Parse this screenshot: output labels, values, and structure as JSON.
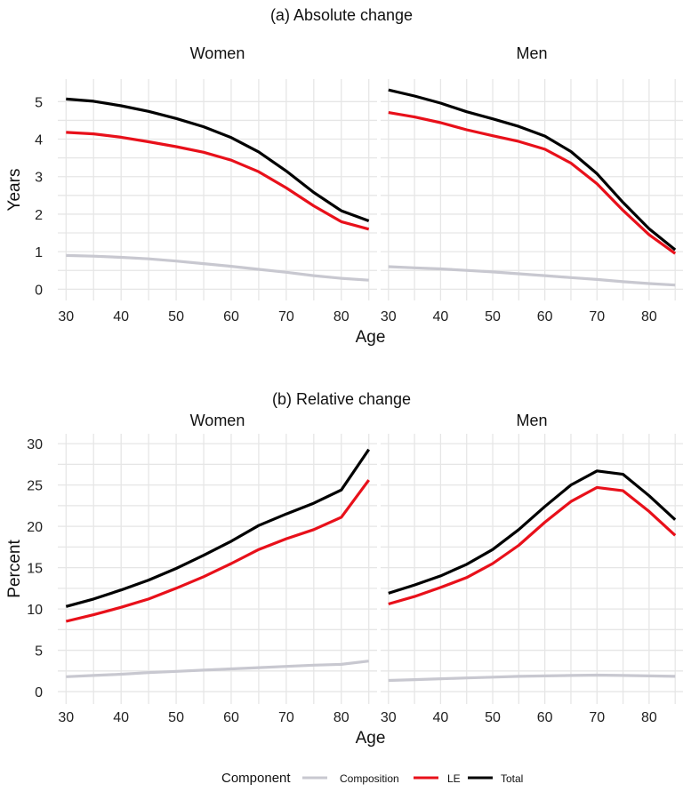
{
  "legend": {
    "title": "Component",
    "entries": [
      {
        "name": "Composition",
        "color": "#c8c8d0"
      },
      {
        "name": "LE",
        "color": "#e8101a"
      },
      {
        "name": "Total",
        "color": "#000000"
      }
    ]
  },
  "chart_data": [
    {
      "type": "line",
      "title": "(a) Absolute change",
      "xlabel": "Age",
      "ylabel": "Years",
      "facets": [
        "Women",
        "Men"
      ],
      "x": [
        30,
        35,
        40,
        45,
        50,
        55,
        60,
        65,
        70,
        75,
        80,
        85
      ],
      "xlim": [
        28.5,
        86.5
      ],
      "ylim": [
        -0.3,
        5.6
      ],
      "xticks": [
        30,
        40,
        50,
        60,
        70,
        80
      ],
      "yticks": [
        0,
        1,
        2,
        3,
        4,
        5
      ],
      "grid": true,
      "panels": [
        {
          "facet": "Women",
          "series": [
            {
              "name": "Composition",
              "values": [
                0.9,
                0.88,
                0.85,
                0.81,
                0.75,
                0.68,
                0.61,
                0.53,
                0.45,
                0.36,
                0.29,
                0.24
              ]
            },
            {
              "name": "LE",
              "values": [
                4.18,
                4.14,
                4.05,
                3.93,
                3.8,
                3.65,
                3.44,
                3.13,
                2.7,
                2.22,
                1.8,
                1.6
              ]
            },
            {
              "name": "Total",
              "values": [
                5.07,
                5.01,
                4.89,
                4.74,
                4.55,
                4.33,
                4.04,
                3.66,
                3.15,
                2.58,
                2.09,
                1.82
              ]
            }
          ]
        },
        {
          "facet": "Men",
          "series": [
            {
              "name": "Composition",
              "values": [
                0.6,
                0.57,
                0.54,
                0.5,
                0.46,
                0.41,
                0.36,
                0.31,
                0.26,
                0.2,
                0.15,
                0.11
              ]
            },
            {
              "name": "LE",
              "values": [
                4.71,
                4.59,
                4.44,
                4.25,
                4.09,
                3.94,
                3.73,
                3.36,
                2.81,
                2.1,
                1.45,
                0.95
              ]
            },
            {
              "name": "Total",
              "values": [
                5.31,
                5.15,
                4.96,
                4.73,
                4.54,
                4.34,
                4.08,
                3.67,
                3.08,
                2.31,
                1.61,
                1.05
              ]
            }
          ]
        }
      ]
    },
    {
      "type": "line",
      "title": "(b) Relative change",
      "xlabel": "Age",
      "ylabel": "Percent",
      "facets": [
        "Women",
        "Men"
      ],
      "x": [
        30,
        35,
        40,
        45,
        50,
        55,
        60,
        65,
        70,
        75,
        80,
        85
      ],
      "xlim": [
        28.5,
        86.5
      ],
      "ylim": [
        -1.5,
        31.2
      ],
      "xticks": [
        30,
        40,
        50,
        60,
        70,
        80
      ],
      "yticks": [
        0,
        5,
        10,
        15,
        20,
        25,
        30
      ],
      "grid": true,
      "panels": [
        {
          "facet": "Women",
          "series": [
            {
              "name": "Composition",
              "values": [
                1.8,
                1.95,
                2.1,
                2.3,
                2.45,
                2.6,
                2.75,
                2.9,
                3.05,
                3.2,
                3.3,
                3.7
              ]
            },
            {
              "name": "LE",
              "values": [
                8.5,
                9.3,
                10.2,
                11.2,
                12.5,
                13.9,
                15.5,
                17.2,
                18.5,
                19.6,
                21.1,
                25.6
              ]
            },
            {
              "name": "Total",
              "values": [
                10.3,
                11.2,
                12.3,
                13.5,
                14.9,
                16.5,
                18.2,
                20.1,
                21.5,
                22.8,
                24.4,
                29.3
              ]
            }
          ]
        },
        {
          "facet": "Men",
          "series": [
            {
              "name": "Composition",
              "values": [
                1.35,
                1.45,
                1.55,
                1.65,
                1.75,
                1.85,
                1.9,
                1.95,
                2.0,
                1.95,
                1.9,
                1.85
              ]
            },
            {
              "name": "LE",
              "values": [
                10.6,
                11.5,
                12.6,
                13.8,
                15.5,
                17.7,
                20.5,
                23.0,
                24.7,
                24.3,
                21.8,
                18.9
              ]
            },
            {
              "name": "Total",
              "values": [
                11.9,
                12.9,
                14.0,
                15.4,
                17.2,
                19.6,
                22.4,
                25.0,
                26.7,
                26.3,
                23.7,
                20.8
              ]
            }
          ]
        }
      ]
    }
  ]
}
